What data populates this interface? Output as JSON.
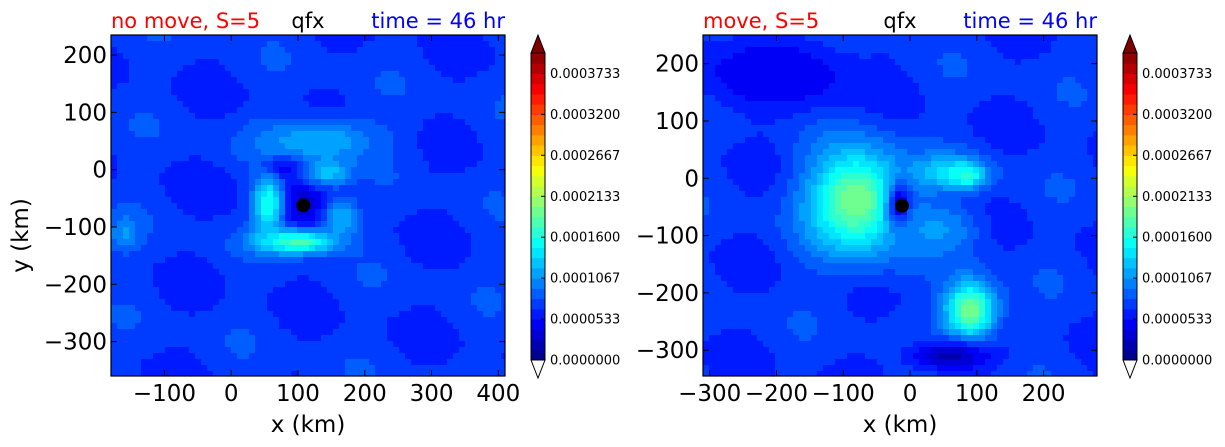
{
  "chart_data": [
    {
      "type": "heatmap",
      "title_left": "no move, S=5",
      "title_center": "qfx",
      "title_right": "time = 46 hr",
      "title_left_color": "#ff0000",
      "title_center_color": "#000000",
      "title_right_color": "#0000ff",
      "xlabel": "x (km)",
      "ylabel": "y (km)",
      "xlim": [
        -180,
        410
      ],
      "ylim": [
        -360,
        235
      ],
      "xticks": [
        -100,
        0,
        100,
        200,
        300,
        400
      ],
      "xtick_labels": [
        "−100",
        "0",
        "100",
        "200",
        "300",
        "400"
      ],
      "yticks": [
        200,
        100,
        0,
        -100,
        -200,
        -300
      ],
      "ytick_labels": [
        "200",
        "100",
        "0",
        "−100",
        "−200",
        "−300"
      ],
      "center_marker": {
        "x": 108,
        "y": -62
      },
      "background_level": 7e-05,
      "features": [
        {
          "x": 108,
          "y": -62,
          "sx": 70,
          "sy": 60,
          "value": 3e-05
        },
        {
          "x": 75,
          "y": 5,
          "sx": 30,
          "sy": 20,
          "value": 1e-05
        },
        {
          "x": 130,
          "y": 50,
          "sx": 90,
          "sy": 40,
          "value": 0.00012
        },
        {
          "x": 55,
          "y": -60,
          "sx": 25,
          "sy": 55,
          "value": 0.00016
        },
        {
          "x": 100,
          "y": -125,
          "sx": 60,
          "sy": 22,
          "value": 0.00018
        },
        {
          "x": 145,
          "y": -5,
          "sx": 35,
          "sy": 25,
          "value": 0.00013
        },
        {
          "x": 165,
          "y": -85,
          "sx": 30,
          "sy": 40,
          "value": 0.00012
        },
        {
          "x": -160,
          "y": -110,
          "sx": 20,
          "sy": 30,
          "value": 0.00011
        }
      ],
      "colorbar": {
        "min": 0.0,
        "max": 0.0004,
        "extend": "both",
        "tick_values": [
          0.0,
          5.33e-05,
          0.0001067,
          0.00016,
          0.0002133,
          0.0002667,
          0.00032,
          0.0003733
        ],
        "tick_labels": [
          "0.0000000",
          "0.0000533",
          "0.0001067",
          "0.0001600",
          "0.0002133",
          "0.0002667",
          "0.0003200",
          "0.0003733"
        ]
      }
    },
    {
      "type": "heatmap",
      "title_left": "move, S=5",
      "title_center": "qfx",
      "title_right": "time = 46 hr",
      "title_left_color": "#ff0000",
      "title_center_color": "#000000",
      "title_right_color": "#0000ff",
      "xlabel": "x (km)",
      "ylabel": "",
      "xlim": [
        -310,
        280
      ],
      "ylim": [
        -345,
        250
      ],
      "xticks": [
        -300,
        -200,
        -100,
        0,
        100,
        200
      ],
      "xtick_labels": [
        "−300",
        "−200",
        "−100",
        "0",
        "100",
        "200"
      ],
      "yticks": [
        200,
        100,
        0,
        -100,
        -200,
        -300
      ],
      "ytick_labels": [
        "200",
        "100",
        "0",
        "−100",
        "−200",
        "−300"
      ],
      "center_marker": {
        "x": -12,
        "y": -48
      },
      "background_level": 7e-05,
      "features": [
        {
          "x": -80,
          "y": -40,
          "sx": 70,
          "sy": 90,
          "value": 0.0002
        },
        {
          "x": -15,
          "y": -48,
          "sx": 18,
          "sy": 40,
          "value": 2e-05
        },
        {
          "x": 60,
          "y": 10,
          "sx": 55,
          "sy": 30,
          "value": 0.00014
        },
        {
          "x": 85,
          "y": 5,
          "sx": 22,
          "sy": 18,
          "value": 0.00017
        },
        {
          "x": 90,
          "y": -230,
          "sx": 38,
          "sy": 50,
          "value": 0.0002
        },
        {
          "x": 60,
          "y": -310,
          "sx": 60,
          "sy": 25,
          "value": 2e-05
        },
        {
          "x": 40,
          "y": -90,
          "sx": 60,
          "sy": 45,
          "value": 0.00011
        },
        {
          "x": -200,
          "y": 180,
          "sx": 120,
          "sy": 60,
          "value": 4e-05
        }
      ],
      "colorbar": {
        "min": 0.0,
        "max": 0.0004,
        "extend": "both",
        "tick_values": [
          0.0,
          5.33e-05,
          0.0001067,
          0.00016,
          0.0002133,
          0.0002667,
          0.00032,
          0.0003733
        ],
        "tick_labels": [
          "0.0000000",
          "0.0000533",
          "0.0001067",
          "0.0001600",
          "0.0002133",
          "0.0002667",
          "0.0003200",
          "0.0003733"
        ]
      }
    }
  ]
}
